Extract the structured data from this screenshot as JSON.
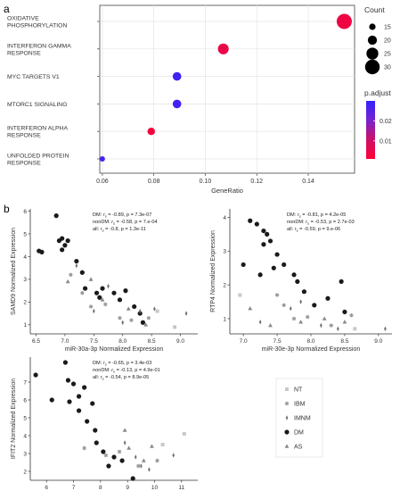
{
  "panels": {
    "a": "a",
    "b": "b"
  },
  "chart_data": [
    {
      "type": "scatter",
      "subtype": "dotplot",
      "xlabel": "GeneRatio",
      "xlim": [
        0.059,
        0.158
      ],
      "xticks": [
        0.06,
        0.08,
        0.1,
        0.12,
        0.14
      ],
      "xtick_labels": [
        "0.06",
        "0.08",
        "0.10",
        "0.12",
        "0.14"
      ],
      "grid": true,
      "categories": [
        [
          "OXIDATIVE",
          "PHOSPHORYLATION"
        ],
        [
          "INTERFERON GAMMA",
          "RESPONSE"
        ],
        [
          "MYC TARGETS V1"
        ],
        [
          "MTORC1 SIGNALING"
        ],
        [
          "INTERFERON ALPHA",
          "RESPONSE"
        ],
        [
          "UNFOLDED PROTEIN",
          "RESPONSE"
        ]
      ],
      "points": [
        {
          "x": 0.154,
          "count": 31,
          "p_adjust": 0.004
        },
        {
          "x": 0.107,
          "count": 23,
          "p_adjust": 0.005
        },
        {
          "x": 0.089,
          "count": 19,
          "p_adjust": 0.028
        },
        {
          "x": 0.089,
          "count": 19,
          "p_adjust": 0.028
        },
        {
          "x": 0.079,
          "count": 17,
          "p_adjust": 0.003
        },
        {
          "x": 0.06,
          "count": 13,
          "p_adjust": 0.027
        }
      ],
      "size_legend": {
        "title": "Count",
        "values": [
          15,
          20,
          25,
          30
        ]
      },
      "color_legend": {
        "title": "p.adjust",
        "ticks": [
          0.02,
          0.01
        ],
        "tick_labels": [
          "0.02",
          "0.01"
        ],
        "range": [
          0.001,
          0.03
        ],
        "colors": [
          "#ff0033",
          "#cc1166",
          "#7722cc",
          "#3322ff"
        ]
      }
    },
    {
      "type": "scatter",
      "xlabel": "miR-30a-3p Normalized Expression",
      "ylabel": "SAMD9 Normalized Expression",
      "xlim": [
        6.4,
        9.3
      ],
      "ylim": [
        0.6,
        6.1
      ],
      "xticks": [
        6.5,
        7.0,
        7.5,
        8.0,
        8.5,
        9.0
      ],
      "xtick_labels": [
        "6.5",
        "7.0",
        "7.5",
        "8.0",
        "8.5",
        "9.0"
      ],
      "yticks": [
        1,
        2,
        3,
        4,
        5,
        6
      ],
      "ytick_labels": [
        "1",
        "2",
        "3",
        "4",
        "5",
        "6"
      ],
      "stats": [
        [
          "DM: ",
          "r",
          "s",
          " = -0.89, p = 7.3e-07"
        ],
        [
          "nonDM: ",
          "r",
          "s",
          " = -0.58, p = 7.e-04"
        ],
        [
          "all: ",
          "r",
          "s",
          " = -0.8, p = 1.3e-11"
        ]
      ],
      "groups": [
        {
          "name": "DM",
          "points": [
            [
              6.6,
              4.2
            ],
            [
              6.55,
              4.25
            ],
            [
              6.85,
              5.8
            ],
            [
              6.9,
              4.7
            ],
            [
              6.95,
              4.8
            ],
            [
              7.0,
              4.5
            ],
            [
              6.95,
              4.3
            ],
            [
              7.05,
              4.7
            ],
            [
              7.2,
              3.8
            ],
            [
              7.3,
              3.3
            ],
            [
              7.35,
              2.6
            ],
            [
              7.55,
              2.4
            ],
            [
              7.6,
              2.2
            ],
            [
              7.65,
              2.6
            ],
            [
              7.85,
              2.4
            ],
            [
              7.95,
              2.1
            ],
            [
              8.05,
              2.5
            ],
            [
              8.2,
              1.8
            ],
            [
              8.3,
              1.5
            ],
            [
              8.35,
              1.1
            ]
          ]
        },
        {
          "name": "IBM",
          "points": [
            [
              7.1,
              3.2
            ],
            [
              7.3,
              2.4
            ],
            [
              7.45,
              1.8
            ],
            [
              7.7,
              1.9
            ],
            [
              7.95,
              1.3
            ],
            [
              8.15,
              1.2
            ],
            [
              8.45,
              1.3
            ]
          ]
        },
        {
          "name": "IMNM",
          "points": [
            [
              7.2,
              3.6
            ],
            [
              7.5,
              1.6
            ],
            [
              7.75,
              2.7
            ],
            [
              8.0,
              1.1
            ],
            [
              8.3,
              1.6
            ],
            [
              8.55,
              1.7
            ],
            [
              9.1,
              1.5
            ]
          ]
        },
        {
          "name": "AS",
          "points": [
            [
              7.05,
              2.9
            ],
            [
              7.45,
              3.0
            ],
            [
              7.65,
              2.1
            ],
            [
              8.1,
              1.7
            ],
            [
              8.4,
              1.0
            ]
          ]
        },
        {
          "name": "NT",
          "points": [
            [
              8.6,
              1.6
            ],
            [
              8.9,
              0.9
            ]
          ]
        }
      ]
    },
    {
      "type": "scatter",
      "xlabel": "miR-30e-3p Normalized Expression",
      "ylabel": "RTP4 Normalized Expression",
      "xlim": [
        6.8,
        9.2
      ],
      "ylim": [
        0.55,
        4.25
      ],
      "xticks": [
        7.0,
        7.5,
        8.0,
        8.5,
        9.0
      ],
      "xtick_labels": [
        "7.0",
        "7.5",
        "8.0",
        "8.5",
        "9.0"
      ],
      "yticks": [
        1,
        2,
        3,
        4
      ],
      "ytick_labels": [
        "1",
        "2",
        "3",
        "4"
      ],
      "stats": [
        [
          "DM: ",
          "r",
          "s",
          " = -0.81, p = 4.2e-05"
        ],
        [
          "nonDM: ",
          "r",
          "s",
          " = -0.53, p = 2.7e-03"
        ],
        [
          "all: ",
          "r",
          "s",
          " = -0.59, p = 9.e-06"
        ]
      ],
      "groups": [
        {
          "name": "DM",
          "points": [
            [
              7.1,
              3.9
            ],
            [
              7.2,
              3.8
            ],
            [
              7.3,
              3.6
            ],
            [
              7.35,
              3.5
            ],
            [
              7.4,
              3.3
            ],
            [
              7.3,
              3.2
            ],
            [
              7.5,
              2.9
            ],
            [
              7.6,
              2.6
            ],
            [
              7.45,
              2.5
            ],
            [
              7.75,
              2.3
            ],
            [
              7.8,
              2.1
            ],
            [
              7.9,
              1.8
            ],
            [
              8.05,
              1.4
            ],
            [
              8.25,
              1.6
            ],
            [
              8.45,
              2.1
            ],
            [
              8.5,
              1.2
            ],
            [
              7.0,
              2.6
            ],
            [
              7.25,
              2.3
            ]
          ]
        },
        {
          "name": "IBM",
          "points": [
            [
              7.5,
              1.7
            ],
            [
              7.6,
              1.4
            ],
            [
              7.75,
              1.0
            ],
            [
              7.95,
              1.05
            ],
            [
              8.3,
              0.8
            ],
            [
              8.6,
              1.1
            ]
          ]
        },
        {
          "name": "IMNM",
          "points": [
            [
              7.25,
              0.9
            ],
            [
              7.7,
              1.3
            ],
            [
              7.85,
              1.5
            ],
            [
              8.15,
              0.8
            ],
            [
              8.4,
              0.7
            ],
            [
              9.1,
              0.7
            ]
          ]
        },
        {
          "name": "AS",
          "points": [
            [
              7.1,
              1.3
            ],
            [
              7.4,
              0.8
            ],
            [
              7.85,
              0.9
            ],
            [
              8.2,
              1.0
            ],
            [
              8.5,
              0.9
            ]
          ]
        },
        {
          "name": "NT",
          "points": [
            [
              6.95,
              1.7
            ],
            [
              8.65,
              0.7
            ]
          ]
        }
      ]
    },
    {
      "type": "scatter",
      "xlabel": "miR-199b-5p Normalized Expression",
      "ylabel": "IFIT2 Normalized Expression",
      "xlim": [
        5.4,
        11.6
      ],
      "ylim": [
        1.5,
        8.4
      ],
      "xticks": [
        6,
        7,
        8,
        9,
        10,
        11
      ],
      "xtick_labels": [
        "6",
        "7",
        "8",
        "9",
        "10",
        "11"
      ],
      "yticks": [
        2,
        3,
        4,
        5,
        6,
        7
      ],
      "ytick_labels": [
        "2",
        "3",
        "4",
        "5",
        "6",
        "7"
      ],
      "stats": [
        [
          "DM: ",
          "r",
          "s",
          " = -0.65, p = 3.4e-03"
        ],
        [
          "nonDM: ",
          "r",
          "s",
          " = -0.13, p = 4.9e-01"
        ],
        [
          "all: ",
          "r",
          "s",
          " = -0.54, p = 8.9e-05"
        ]
      ],
      "groups": [
        {
          "name": "DM",
          "points": [
            [
              5.6,
              7.4
            ],
            [
              6.2,
              6.0
            ],
            [
              6.7,
              8.1
            ],
            [
              6.8,
              7.1
            ],
            [
              7.0,
              6.9
            ],
            [
              6.85,
              5.9
            ],
            [
              7.2,
              6.2
            ],
            [
              7.4,
              6.7
            ],
            [
              7.7,
              5.8
            ],
            [
              7.5,
              4.8
            ],
            [
              7.8,
              4.3
            ],
            [
              7.85,
              3.6
            ],
            [
              8.1,
              3.1
            ],
            [
              8.5,
              2.8
            ],
            [
              8.8,
              2.6
            ],
            [
              8.3,
              2.3
            ],
            [
              9.2,
              1.6
            ],
            [
              7.2,
              5.4
            ]
          ]
        },
        {
          "name": "IBM",
          "points": [
            [
              7.4,
              3.3
            ],
            [
              8.2,
              2.9
            ],
            [
              8.7,
              3.1
            ],
            [
              9.4,
              2.3
            ],
            [
              10.1,
              2.6
            ]
          ]
        },
        {
          "name": "IMNM",
          "points": [
            [
              8.9,
              3.6
            ],
            [
              9.3,
              2.8
            ],
            [
              9.5,
              2.3
            ],
            [
              9.8,
              2.1
            ],
            [
              10.7,
              2.9
            ]
          ]
        },
        {
          "name": "AS",
          "points": [
            [
              8.9,
              4.3
            ],
            [
              9.05,
              3.3
            ],
            [
              9.6,
              2.6
            ],
            [
              9.9,
              3.4
            ]
          ]
        },
        {
          "name": "NT",
          "points": [
            [
              10.3,
              3.5
            ],
            [
              11.1,
              4.1
            ]
          ]
        }
      ]
    }
  ],
  "group_styles": {
    "NT": {
      "color": "#c8c8c8",
      "shape": "square"
    },
    "IBM": {
      "color": "#9a9a9a",
      "shape": "star"
    },
    "IMNM": {
      "color": "#707070",
      "shape": "diamond"
    },
    "DM": {
      "color": "#1a1a1a",
      "shape": "circle"
    },
    "AS": {
      "color": "#888888",
      "shape": "triangle"
    }
  },
  "legend_order": [
    "NT",
    "IBM",
    "IMNM",
    "DM",
    "AS"
  ]
}
